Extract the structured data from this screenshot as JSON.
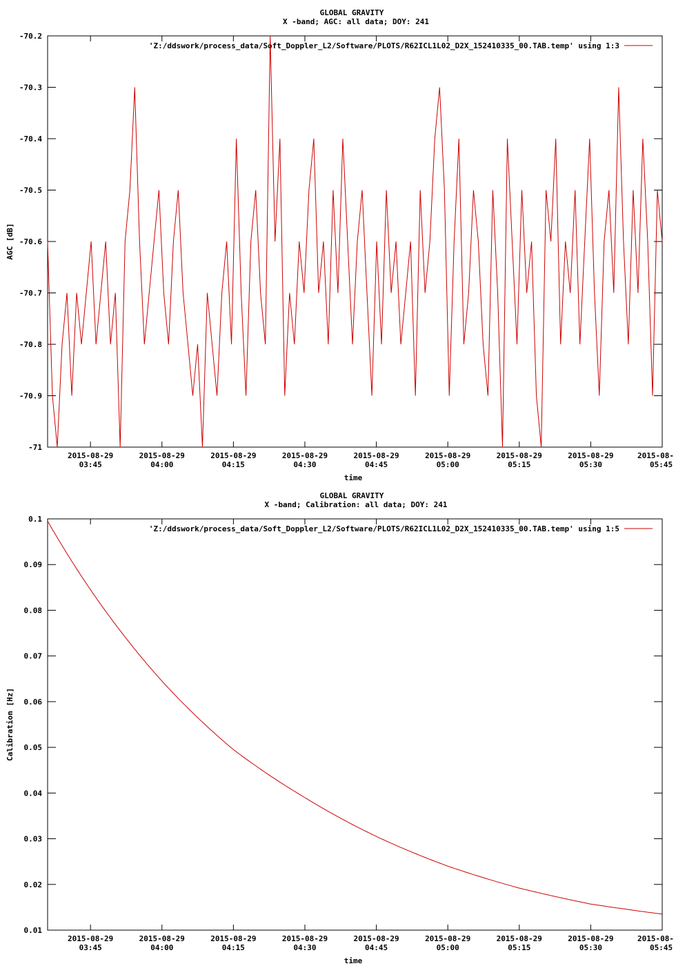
{
  "colors": {
    "series": "#cc0000",
    "axis": "#000000",
    "background": "#ffffff"
  },
  "chart_data": [
    {
      "type": "line",
      "title": "GLOBAL GRAVITY",
      "subtitle": "X -band; AGC: all data; DOY: 241",
      "xlabel": "time",
      "ylabel": "AGC [dB]",
      "xlim": [
        "2015-08-29 03:36",
        "2015-08-29 05:45"
      ],
      "ylim": [
        -71,
        -70.2
      ],
      "y_ticks": [
        "-70.2",
        "-70.3",
        "-70.4",
        "-70.5",
        "-70.6",
        "-70.7",
        "-70.8",
        "-70.9",
        "-71"
      ],
      "x_ticks": [
        {
          "date": "2015-08-29",
          "time": "03:45"
        },
        {
          "date": "2015-08-29",
          "time": "04:00"
        },
        {
          "date": "2015-08-29",
          "time": "04:15"
        },
        {
          "date": "2015-08-29",
          "time": "04:30"
        },
        {
          "date": "2015-08-29",
          "time": "04:45"
        },
        {
          "date": "2015-08-29",
          "time": "05:00"
        },
        {
          "date": "2015-08-29",
          "time": "05:15"
        },
        {
          "date": "2015-08-29",
          "time": "05:30"
        },
        {
          "date": "2015-08-",
          "time": "05:45"
        }
      ],
      "legend": "top-right",
      "grid": false,
      "series": [
        {
          "name": "'Z:/ddswork/process_data/Soft_Doppler_L2/Software/PLOTS/R62ICL1L02_D2X_152410335_00.TAB.temp' using 1:3",
          "description_of_values": "noisy AGC signal, sampled at ~1-minute spacing",
          "x_start": "03:36",
          "x_step_min": 1,
          "values": [
            -70.6,
            -70.9,
            -71.0,
            -70.8,
            -70.7,
            -70.9,
            -70.7,
            -70.8,
            -70.7,
            -70.6,
            -70.8,
            -70.7,
            -70.6,
            -70.8,
            -70.7,
            -71.0,
            -70.6,
            -70.5,
            -70.3,
            -70.6,
            -70.8,
            -70.7,
            -70.6,
            -70.5,
            -70.7,
            -70.8,
            -70.6,
            -70.5,
            -70.7,
            -70.8,
            -70.9,
            -70.8,
            -71.0,
            -70.7,
            -70.8,
            -70.9,
            -70.7,
            -70.6,
            -70.8,
            -70.4,
            -70.7,
            -70.9,
            -70.6,
            -70.5,
            -70.7,
            -70.8,
            -70.2,
            -70.6,
            -70.4,
            -70.9,
            -70.7,
            -70.8,
            -70.6,
            -70.7,
            -70.5,
            -70.4,
            -70.7,
            -70.6,
            -70.8,
            -70.5,
            -70.7,
            -70.4,
            -70.6,
            -70.8,
            -70.6,
            -70.5,
            -70.7,
            -70.9,
            -70.6,
            -70.8,
            -70.5,
            -70.7,
            -70.6,
            -70.8,
            -70.7,
            -70.6,
            -70.9,
            -70.5,
            -70.7,
            -70.6,
            -70.4,
            -70.3,
            -70.5,
            -70.9,
            -70.6,
            -70.4,
            -70.8,
            -70.7,
            -70.5,
            -70.6,
            -70.8,
            -70.9,
            -70.5,
            -70.7,
            -71.0,
            -70.4,
            -70.6,
            -70.8,
            -70.5,
            -70.7,
            -70.6,
            -70.9,
            -71.0,
            -70.5,
            -70.6,
            -70.4,
            -70.8,
            -70.6,
            -70.7,
            -70.5,
            -70.8,
            -70.6,
            -70.4,
            -70.7,
            -70.9,
            -70.6,
            -70.5,
            -70.7,
            -70.3,
            -70.6,
            -70.8,
            -70.5,
            -70.7,
            -70.4,
            -70.6,
            -70.9,
            -70.5,
            -70.6
          ]
        }
      ]
    },
    {
      "type": "line",
      "title": "GLOBAL GRAVITY",
      "subtitle": "X -band; Calibration: all data; DOY: 241",
      "xlabel": "time",
      "ylabel": "Calibration [Hz]",
      "xlim": [
        "2015-08-29 03:36",
        "2015-08-29 05:45"
      ],
      "ylim": [
        0.01,
        0.1
      ],
      "y_ticks": [
        "0.1",
        "0.09",
        "0.08",
        "0.07",
        "0.06",
        "0.05",
        "0.04",
        "0.03",
        "0.02",
        "0.01"
      ],
      "x_ticks": [
        {
          "date": "2015-08-29",
          "time": "03:45"
        },
        {
          "date": "2015-08-29",
          "time": "04:00"
        },
        {
          "date": "2015-08-29",
          "time": "04:15"
        },
        {
          "date": "2015-08-29",
          "time": "04:30"
        },
        {
          "date": "2015-08-29",
          "time": "04:45"
        },
        {
          "date": "2015-08-29",
          "time": "05:00"
        },
        {
          "date": "2015-08-29",
          "time": "05:15"
        },
        {
          "date": "2015-08-29",
          "time": "05:30"
        },
        {
          "date": "2015-08-",
          "time": "05:45"
        }
      ],
      "legend": "top-right",
      "grid": false,
      "series": [
        {
          "name": "'Z:/ddswork/process_data/Soft_Doppler_L2/Software/PLOTS/R62ICL1L02_D2X_152410335_00.TAB.temp' using 1:5",
          "x": [
            "03:36",
            "03:45",
            "04:00",
            "04:15",
            "04:30",
            "04:45",
            "05:00",
            "05:15",
            "05:30",
            "05:45"
          ],
          "values": [
            0.0995,
            0.0845,
            0.0645,
            0.0495,
            0.039,
            0.0305,
            0.024,
            0.0192,
            0.0157,
            0.0135
          ]
        }
      ]
    }
  ]
}
